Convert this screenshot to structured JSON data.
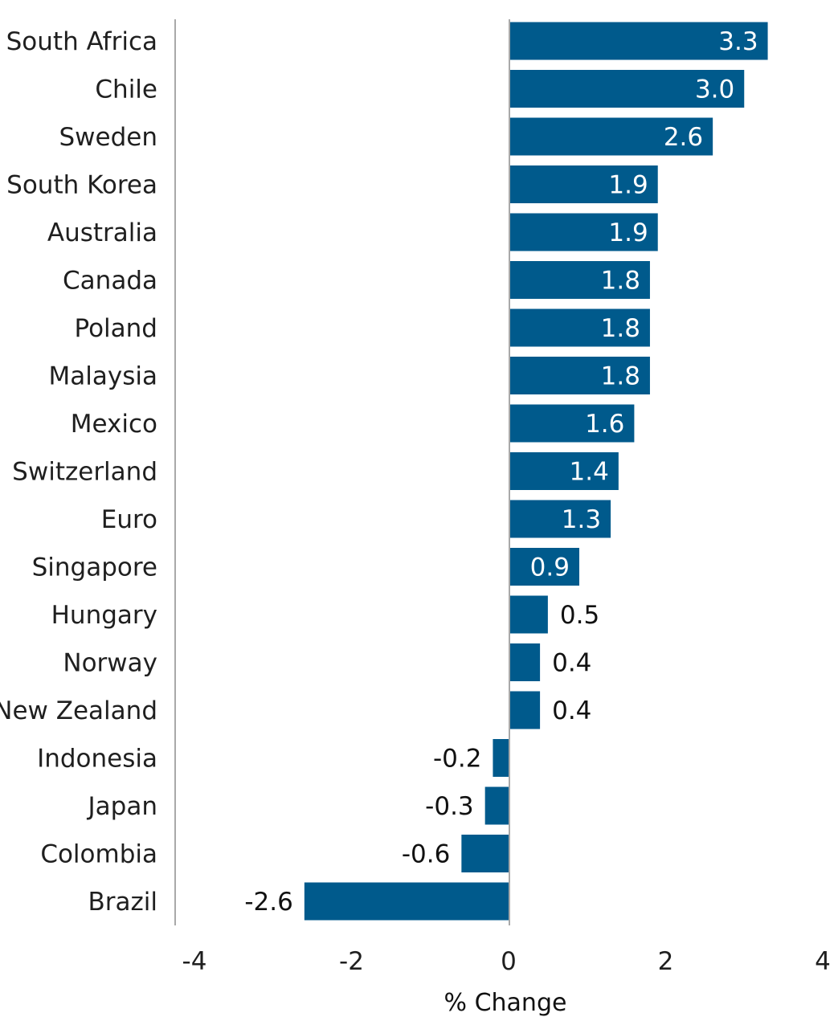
{
  "chart_data": {
    "type": "bar",
    "orientation": "horizontal",
    "categories": [
      "South Africa",
      "Chile",
      "Sweden",
      "South Korea",
      "Australia",
      "Canada",
      "Poland",
      "Malaysia",
      "Mexico",
      "Switzerland",
      "Euro",
      "Singapore",
      "Hungary",
      "Norway",
      "New Zealand",
      "Indonesia",
      "Japan",
      "Colombia",
      "Brazil"
    ],
    "values": [
      3.3,
      3.0,
      2.6,
      1.9,
      1.9,
      1.8,
      1.8,
      1.8,
      1.6,
      1.4,
      1.3,
      0.9,
      0.5,
      0.4,
      0.4,
      -0.2,
      -0.3,
      -0.6,
      -2.6
    ],
    "value_labels": [
      "3.3",
      "3.0",
      "2.6",
      "1.9",
      "1.9",
      "1.8",
      "1.8",
      "1.8",
      "1.6",
      "1.4",
      "1.3",
      "0.9",
      "0.5",
      "0.4",
      "0.4",
      "-0.2",
      "-0.3",
      "-0.6",
      "-2.6"
    ],
    "xlabel": "% Change",
    "ylabel": "",
    "xlim": [
      -4,
      4
    ],
    "xticks": [
      -4,
      -2,
      0,
      2,
      4
    ],
    "xtick_labels": [
      "-4",
      "-2",
      "0",
      "2",
      "4"
    ],
    "grid": false,
    "legend": "none",
    "colors": {
      "bar": "#005a8c",
      "axis": "#a9a9a9",
      "label_inside": "#ffffff",
      "label_outside": "#111111"
    }
  }
}
